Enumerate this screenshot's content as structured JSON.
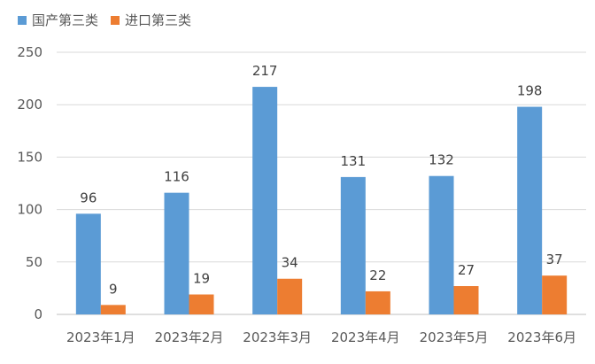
{
  "chart_data": {
    "type": "bar",
    "title": "",
    "xlabel": "",
    "ylabel": "",
    "ylim": [
      0,
      250
    ],
    "yticks": [
      0,
      50,
      100,
      150,
      200,
      250
    ],
    "grid": true,
    "legend_position": "top-left",
    "categories": [
      "2023年1月",
      "2023年2月",
      "2023年3月",
      "2023年4月",
      "2023年5月",
      "2023年6月"
    ],
    "series": [
      {
        "name": "国产第三类",
        "color": "#5B9BD5",
        "values": [
          96,
          116,
          217,
          131,
          132,
          198
        ]
      },
      {
        "name": "进口第三类",
        "color": "#ED7D31",
        "values": [
          9,
          19,
          34,
          22,
          27,
          37
        ]
      }
    ]
  }
}
